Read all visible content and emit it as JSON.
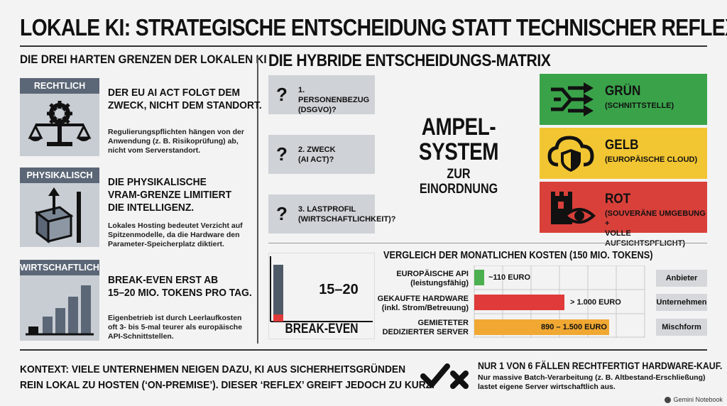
{
  "title": "LOKALE KI: STRATEGISCHE ENTSCHEIDUNG STATT TECHNISCHER REFLEX",
  "left": {
    "title": "DIE DREI HARTEN GRENZEN DER LOKALEN KI",
    "items": [
      {
        "category": "RECHTLICH",
        "icon": "scales-gear-icon",
        "headline": [
          "DER EU AI ACT FOLGT DEM",
          "ZWECK, NICHT DEM STANDORT."
        ],
        "text": [
          "Regulierungspflichten hängen von der",
          "Anwendung (z. B. Risikoprüfung) ab,",
          "nicht vom Serverstandort."
        ]
      },
      {
        "category": "PHYSIKALISCH",
        "icon": "box-limit-icon",
        "headline": [
          "DIE PHYSIKALISCHE",
          "VRAM-GRENZE LIMITIERT",
          "DIE INTELLIGENZ."
        ],
        "text": [
          "Lokales Hosting bedeutet Verzicht auf",
          "Spitzenmodelle, da die Hardware den",
          "Parameter-Speicherplatz diktiert."
        ]
      },
      {
        "category": "WIRTSCHAFTLICH",
        "icon": "bar-growth-icon",
        "headline": [
          "BREAK-EVEN ERST AB",
          "15–20 MIO. TOKENS PRO TAG."
        ],
        "text": [
          "Eigenbetrieb ist durch Leerlaufkosten",
          "oft 3- bis 5-mal teurer als europäische",
          "API-Schnittstellen."
        ]
      }
    ]
  },
  "matrix": {
    "title": "DIE HYBRIDE ENTSCHEIDUNGS-MATRIX",
    "questions": [
      {
        "mark": "?",
        "lines": [
          "1. PERSONENBEZUG",
          "(DSGVO)?"
        ]
      },
      {
        "mark": "?",
        "lines": [
          "2. ZWECK",
          "(AI ACT)?"
        ]
      },
      {
        "mark": "?",
        "lines": [
          "3. LASTPROFIL",
          "(WIRTSCHAFTLICHKEIT)?"
        ]
      }
    ],
    "ampel": {
      "big": [
        "AMPEL-",
        "SYSTEM"
      ],
      "small": [
        "ZUR",
        "EINORDNUNG"
      ]
    },
    "lights": [
      {
        "title": "GRÜN",
        "sub": [
          "(SCHNITTSTELLE)"
        ],
        "color": "#3aa34a",
        "icon": "interface-arrows-icon"
      },
      {
        "title": "GELB",
        "sub": [
          "(EUROPÄISCHE CLOUD)"
        ],
        "color": "#f2c632",
        "icon": "cloud-shield-icon"
      },
      {
        "title": "ROT",
        "sub": [
          "(SOUVERÄNE UMGEBUNG +",
          "VOLLE AUFSICHTSPFLICHT)"
        ],
        "color": "#d9403a",
        "icon": "tower-eye-icon"
      }
    ]
  },
  "breakeven": {
    "value": "15–20",
    "label": "BREAK-EVEN",
    "fill_fraction": 0.12
  },
  "costs": {
    "title": "VERGLEICH DER MONATLICHEN KOSTEN (150 MIO. TOKENS)",
    "rows": [
      {
        "label": [
          "EUROPÄISCHE API",
          "(leistungsfähig)"
        ],
        "value_label": "~110 EURO",
        "value": 110,
        "color": "#4caf50",
        "provider": "Anbieter"
      },
      {
        "label": [
          "GEKAUFTE HARDWARE",
          "(inkl. Strom/Betreuung)"
        ],
        "value_label": "> 1.000 EURO",
        "value": 1000,
        "color": "#e03a3a",
        "provider": "Unternehmen"
      },
      {
        "label": [
          "GEMIETETER",
          "DEDIZIERTER SERVER"
        ],
        "value_label": "890 – 1.500 EURO",
        "value": 1500,
        "color": "#f0a832",
        "provider": "Mischform"
      }
    ]
  },
  "context": [
    "KONTEXT: VIELE UNTERNEHMEN NEIGEN DAZU, KI AUS SICHERHEITSGRÜNDEN",
    "REIN LOKAL ZU HOSTEN (‘ON-PREMISE’). DIESER ‘REFLEX’ GREIFT JEDOCH ZU KURZ."
  ],
  "verdict": {
    "headline": "NUR 1 VON 6 FÄLLEN RECHTFERTIGT HARDWARE-KAUF.",
    "sub": [
      "Nur massive Batch-Verarbeitung (z. B. Altbestand-Erschließung)",
      "lastet eigene Server wirtschaftlich aus."
    ]
  },
  "footer": "Gemini Notebook"
}
